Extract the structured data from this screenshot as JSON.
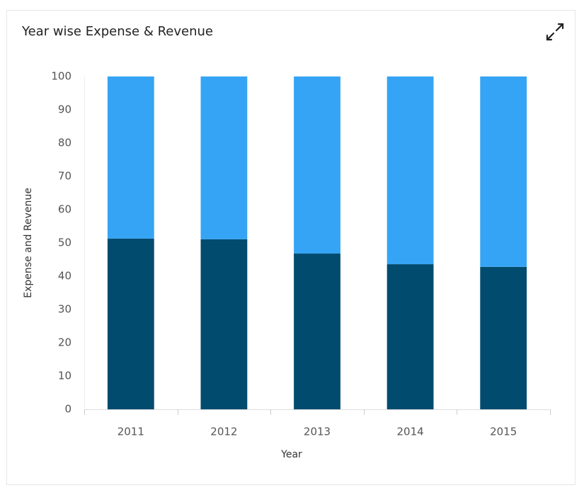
{
  "chart_data": {
    "type": "stacked_bar",
    "title": "Year wise Expense & Revenue",
    "x_label": "Year",
    "y_label": "Expense and Revenue",
    "categories": [
      "2011",
      "2012",
      "2013",
      "2014",
      "2015"
    ],
    "series": [
      {
        "color": "#004b6e",
        "values": [
          51.3,
          51.1,
          46.8,
          43.6,
          42.8
        ]
      },
      {
        "color": "#35a4f4",
        "values": [
          48.7,
          48.9,
          53.2,
          56.4,
          57.2
        ]
      }
    ],
    "ylim": [
      0,
      100
    ],
    "yticks": [
      0,
      10,
      20,
      30,
      40,
      50,
      60,
      70,
      80,
      90,
      100
    ],
    "grid": false
  }
}
